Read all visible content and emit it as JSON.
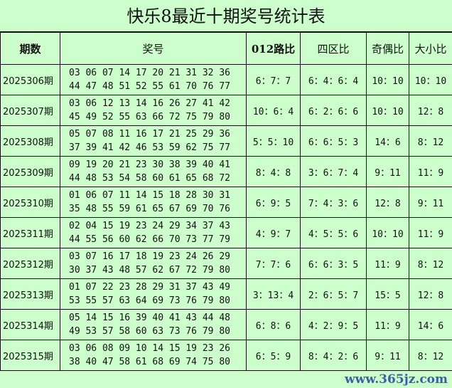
{
  "title": "快乐8最近十期奖号统计表",
  "headers": [
    "期数",
    "奖号",
    "012路比",
    "四区比",
    "奇偶比",
    "大小比"
  ],
  "rows": [
    {
      "period": "2025306期",
      "line1": "03 06 07 14 17 20 21 31 32 36",
      "line2": "44 47 48 51 52 55 61 70 76 77",
      "r012": "6：7：7",
      "zone": "6：4：6：4",
      "oddeven": "10：10",
      "bigsmall": "10：10"
    },
    {
      "period": "2025307期",
      "line1": "03 06 12 13 14 16 26 27 41 42",
      "line2": "45 49 52 55 63 66 72 75 79 80",
      "r012": "10：6：4",
      "zone": "6：2：6：6",
      "oddeven": "10：10",
      "bigsmall": "12：8"
    },
    {
      "period": "2025308期",
      "line1": "05 07 08 11 16 17 21 25 29 36",
      "line2": "37 39 41 42 46 53 59 62 75 77",
      "r012": "5：5：10",
      "zone": "6：6：5：3",
      "oddeven": "14：6",
      "bigsmall": "8：12"
    },
    {
      "period": "2025309期",
      "line1": "09 19 20 21 23 30 38 39 40 41",
      "line2": "44 48 53 54 58 60 61 65 68 72",
      "r012": "8：4：8",
      "zone": "3：6：7：4",
      "oddeven": "9：11",
      "bigsmall": "11：9"
    },
    {
      "period": "2025310期",
      "line1": "01 06 07 11 14 15 18 28 30 31",
      "line2": "35 48 55 59 61 65 67 69 70 76",
      "r012": "6：9：5",
      "zone": "7：4：3：6",
      "oddeven": "12：8",
      "bigsmall": "9：11"
    },
    {
      "period": "2025311期",
      "line1": "02 04 15 19 23 24 29 34 37 43",
      "line2": "44 55 56 60 62 66 70 73 77 79",
      "r012": "4：9：7",
      "zone": "4：5：5：6",
      "oddeven": "10：10",
      "bigsmall": "11：9"
    },
    {
      "period": "2025312期",
      "line1": "03 07 16 17 18 19 23 24 26 29",
      "line2": "30 37 43 48 57 62 67 72 79 80",
      "r012": "7：7：6",
      "zone": "6：6：3：5",
      "oddeven": "11：9",
      "bigsmall": "8：12"
    },
    {
      "period": "2025313期",
      "line1": "01 07 22 23 28 29 31 37 43 49",
      "line2": "53 55 57 63 64 69 73 76 79 80",
      "r012": "3：13：4",
      "zone": "2：6：5：7",
      "oddeven": "15：5",
      "bigsmall": "12：8"
    },
    {
      "period": "2025314期",
      "line1": "05 14 15 16 39 40 41 43 44 48",
      "line2": "49 53 57 58 60 63 73 76 79 80",
      "r012": "6：8：6",
      "zone": "4：2：9：5",
      "oddeven": "11：9",
      "bigsmall": "14：6"
    },
    {
      "period": "2025315期",
      "line1": "03 06 08 09 10 14 15 19 23 26",
      "line2": "38 40 47 58 61 68 69 74 75 80",
      "r012": "6：5：9",
      "zone": "8：4：2：6",
      "oddeven": "9：11",
      "bigsmall": "8：12"
    }
  ],
  "watermark": "www.365jz.com"
}
